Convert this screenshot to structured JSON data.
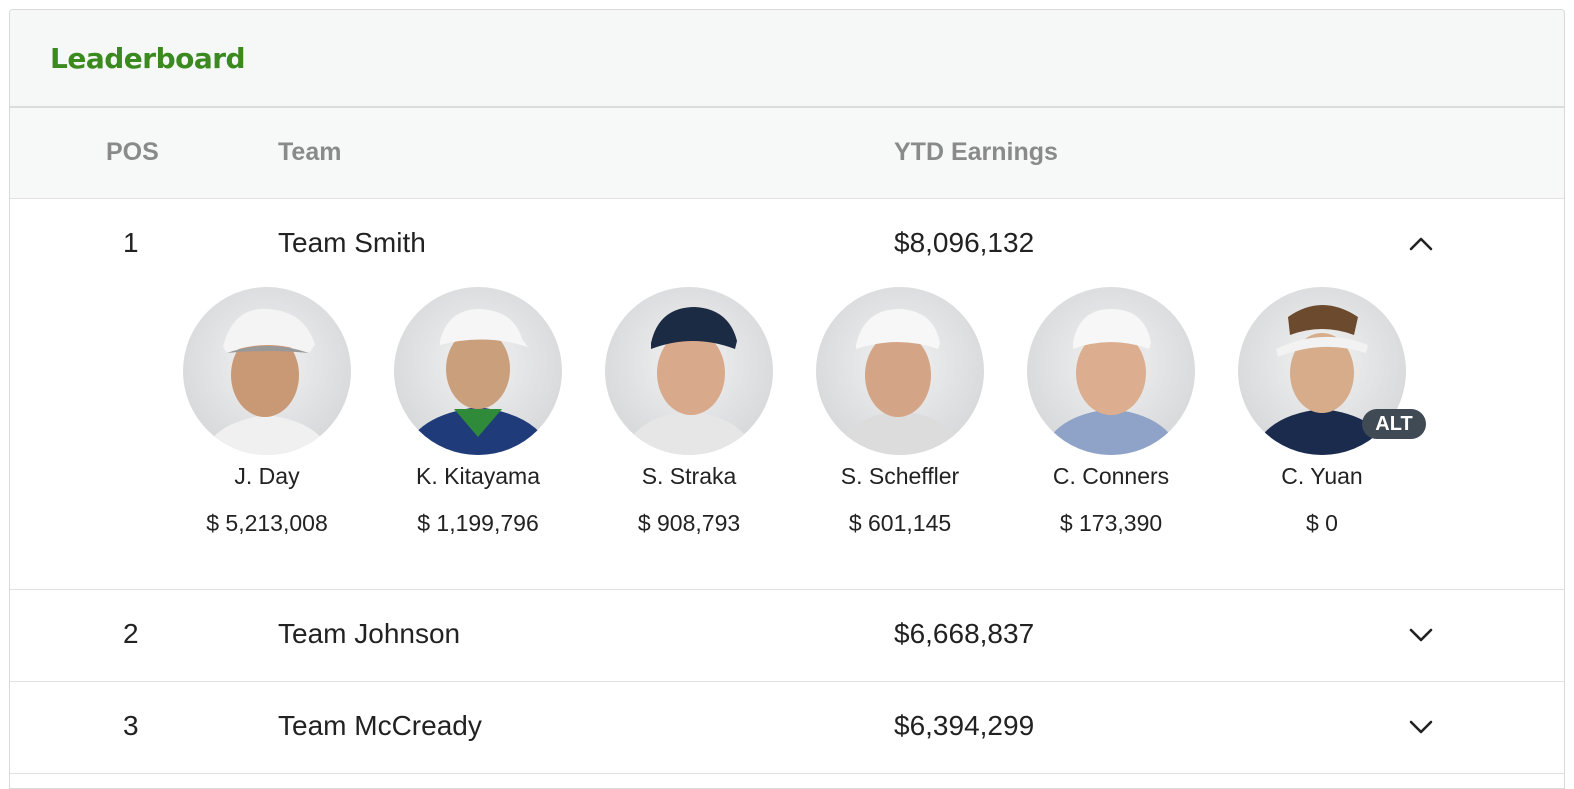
{
  "header": {
    "title": "Leaderboard"
  },
  "columns": {
    "pos": "POS",
    "team": "Team",
    "ytd": "YTD Earnings"
  },
  "rows": [
    {
      "pos": "1",
      "team": "Team Smith",
      "earnings": "$8,096,132",
      "expanded": true,
      "players": [
        {
          "name": "J. Day",
          "earnings": "$ 5,213,008",
          "cap_color": "#f4f4f4",
          "shirt_color": "#f0f0f0"
        },
        {
          "name": "K. Kitayama",
          "earnings": "$ 1,199,796",
          "cap_color": "#f6f6f6",
          "shirt_color": "#1f3b7a"
        },
        {
          "name": "S. Straka",
          "earnings": "$ 908,793",
          "cap_color": "#1c2b44",
          "shirt_color": "#e6e6e6"
        },
        {
          "name": "S. Scheffler",
          "earnings": "$ 601,145",
          "cap_color": "#f7f7f7",
          "shirt_color": "#dcdcdc"
        },
        {
          "name": "C. Conners",
          "earnings": "$ 173,390",
          "cap_color": "#f7f7f7",
          "shirt_color": "#8fa3c8"
        },
        {
          "name": "C. Yuan",
          "earnings": "$ 0",
          "cap_color": "#f2f2f2",
          "shirt_color": "#1b2b4d",
          "badge": "ALT"
        }
      ]
    },
    {
      "pos": "2",
      "team": "Team Johnson",
      "earnings": "$6,668,837",
      "expanded": false
    },
    {
      "pos": "3",
      "team": "Team McCready",
      "earnings": "$6,394,299",
      "expanded": false
    }
  ]
}
